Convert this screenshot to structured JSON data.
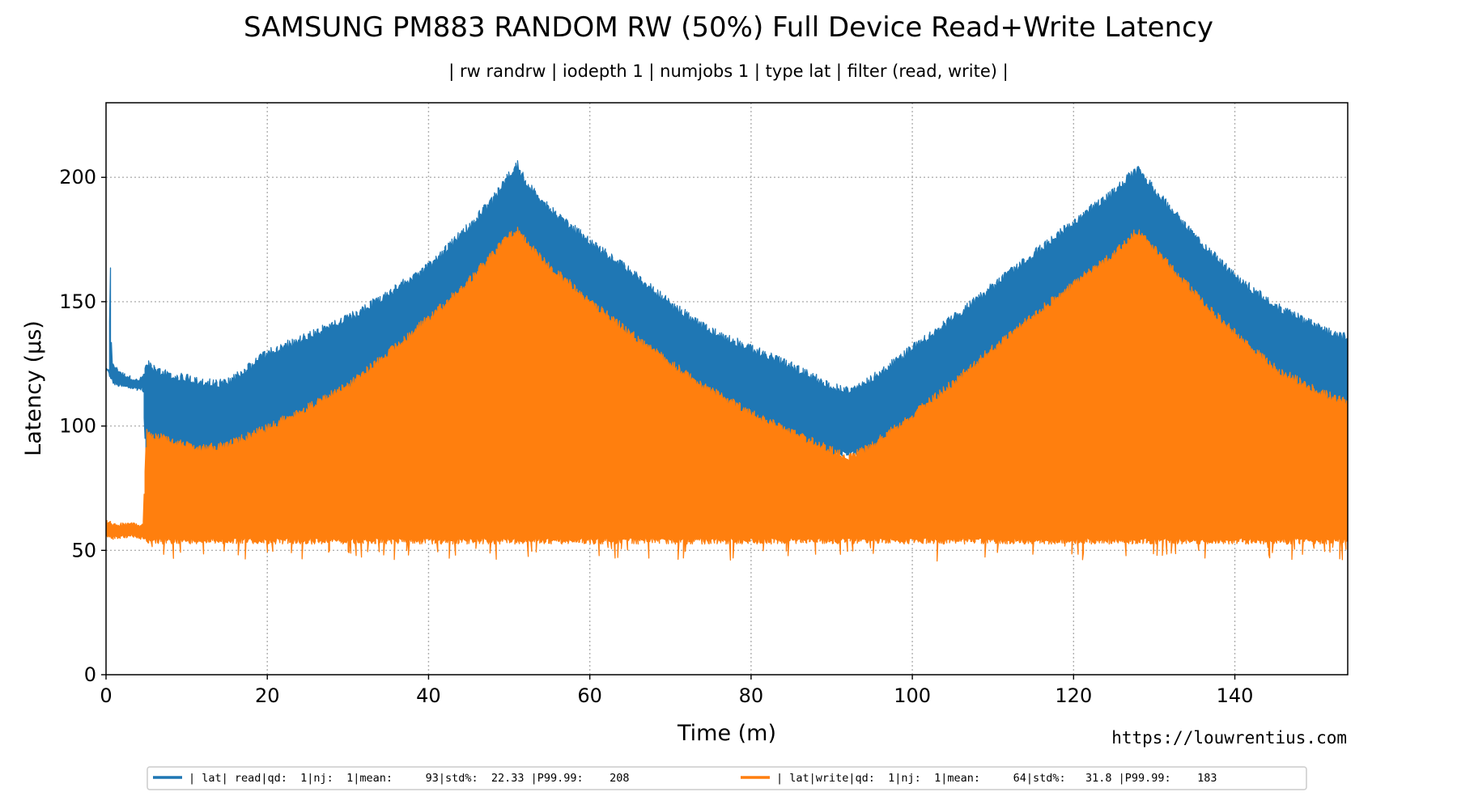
{
  "chart_data": {
    "type": "line",
    "title": "SAMSUNG PM883 RANDOM RW (50%) Full Device Read+Write Latency",
    "subtitle": "| rw randrw | iodepth 1 | numjobs 1 | type lat | filter (read, write) |",
    "xlabel": "Time (m)",
    "ylabel": "Latency (µs)",
    "xlim": [
      0,
      154
    ],
    "ylim": [
      0,
      230
    ],
    "xticks": [
      0,
      20,
      40,
      60,
      80,
      100,
      120,
      140
    ],
    "yticks": [
      0,
      50,
      100,
      150,
      200
    ],
    "grid": true,
    "legend_position": "bottom",
    "watermark": "https://louwrentius.com",
    "series": [
      {
        "name": "| lat| read|qd:  1|nj:  1|mean:     93|std%:  22.33 |P99.99:    208",
        "color": "#1f77b4",
        "x": [
          0,
          0.4,
          0.5,
          0.7,
          1,
          2,
          4,
          4.6,
          5,
          8,
          10,
          12,
          15,
          20,
          25,
          30,
          35,
          40,
          45,
          48,
          50,
          51,
          52,
          55,
          60,
          65,
          70,
          75,
          80,
          85,
          90,
          92,
          95,
          100,
          105,
          110,
          115,
          120,
          125,
          127,
          128,
          130,
          135,
          140,
          145,
          150,
          154
        ],
        "upper": [
          123,
          122,
          178,
          125,
          124,
          121,
          118,
          120,
          127,
          122,
          121,
          119,
          119,
          131,
          138,
          145,
          155,
          166,
          182,
          193,
          203,
          207,
          200,
          189,
          176,
          164,
          151,
          140,
          133,
          126,
          118,
          116,
          121,
          133,
          145,
          158,
          171,
          184,
          196,
          203,
          205,
          197,
          178,
          162,
          150,
          142,
          137
        ],
        "lower": [
          122,
          122,
          122,
          119,
          117,
          116,
          115,
          115,
          85,
          85,
          86,
          86,
          87,
          88,
          89,
          89,
          90,
          90,
          90,
          90,
          90,
          90,
          90,
          90,
          90,
          90,
          90,
          90,
          90,
          90,
          90,
          90,
          90,
          90,
          90,
          90,
          90,
          90,
          90,
          90,
          90,
          90,
          90,
          90,
          90,
          90,
          90
        ]
      },
      {
        "name": "| lat|write|qd:  1|nj:  1|mean:     64|std%:   31.8 |P99.99:    183",
        "color": "#ff7f0e",
        "x": [
          0,
          1,
          3,
          4.6,
          5,
          8,
          10,
          12,
          15,
          20,
          25,
          30,
          35,
          40,
          45,
          48,
          50,
          51,
          52,
          55,
          60,
          65,
          70,
          75,
          80,
          85,
          90,
          92,
          95,
          100,
          105,
          110,
          115,
          120,
          125,
          127,
          128,
          130,
          135,
          140,
          145,
          150,
          154
        ],
        "upper": [
          62,
          60,
          61,
          60,
          99,
          96,
          94,
          93,
          94,
          101,
          109,
          118,
          131,
          145,
          160,
          171,
          178,
          181,
          176,
          166,
          152,
          139,
          127,
          116,
          107,
          99,
          92,
          89,
          94,
          106,
          119,
          133,
          146,
          159,
          171,
          178,
          180,
          173,
          155,
          139,
          125,
          116,
          111
        ],
        "lower": [
          56,
          55,
          56,
          55,
          55,
          55,
          55,
          55,
          55,
          55,
          55,
          55,
          55,
          55,
          55,
          55,
          55,
          55,
          55,
          55,
          55,
          55,
          55,
          55,
          55,
          55,
          55,
          55,
          55,
          55,
          55,
          55,
          55,
          55,
          55,
          55,
          55,
          55,
          55,
          55,
          55,
          55,
          55
        ]
      }
    ]
  }
}
